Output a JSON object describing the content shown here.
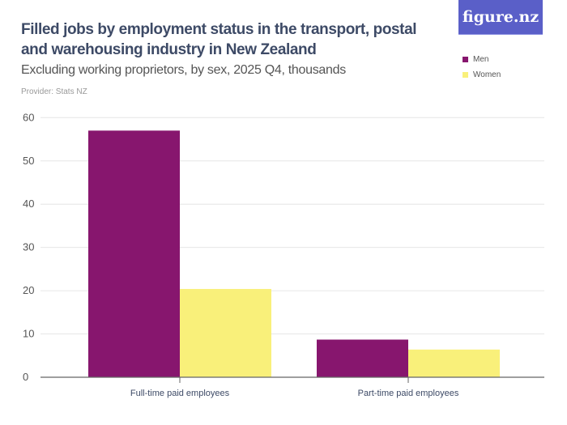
{
  "title": "Filled jobs by employment status in the transport, postal and warehousing industry in New Zealand",
  "subtitle": "Excluding working proprietors, by sex, 2025 Q4, thousands",
  "provider": "Provider: Stats NZ",
  "logo": "figure.nz",
  "chart_data": {
    "type": "bar",
    "categories": [
      "Full-time paid employees",
      "Part-time paid employees"
    ],
    "series": [
      {
        "name": "Men",
        "color": "#87166e",
        "values": [
          57.0,
          8.7
        ]
      },
      {
        "name": "Women",
        "color": "#f9f07a",
        "values": [
          20.4,
          6.4
        ]
      }
    ],
    "ylim": [
      0,
      60
    ],
    "yticks": [
      0,
      10,
      20,
      30,
      40,
      50,
      60
    ],
    "grid": true,
    "legend": "top-right"
  }
}
